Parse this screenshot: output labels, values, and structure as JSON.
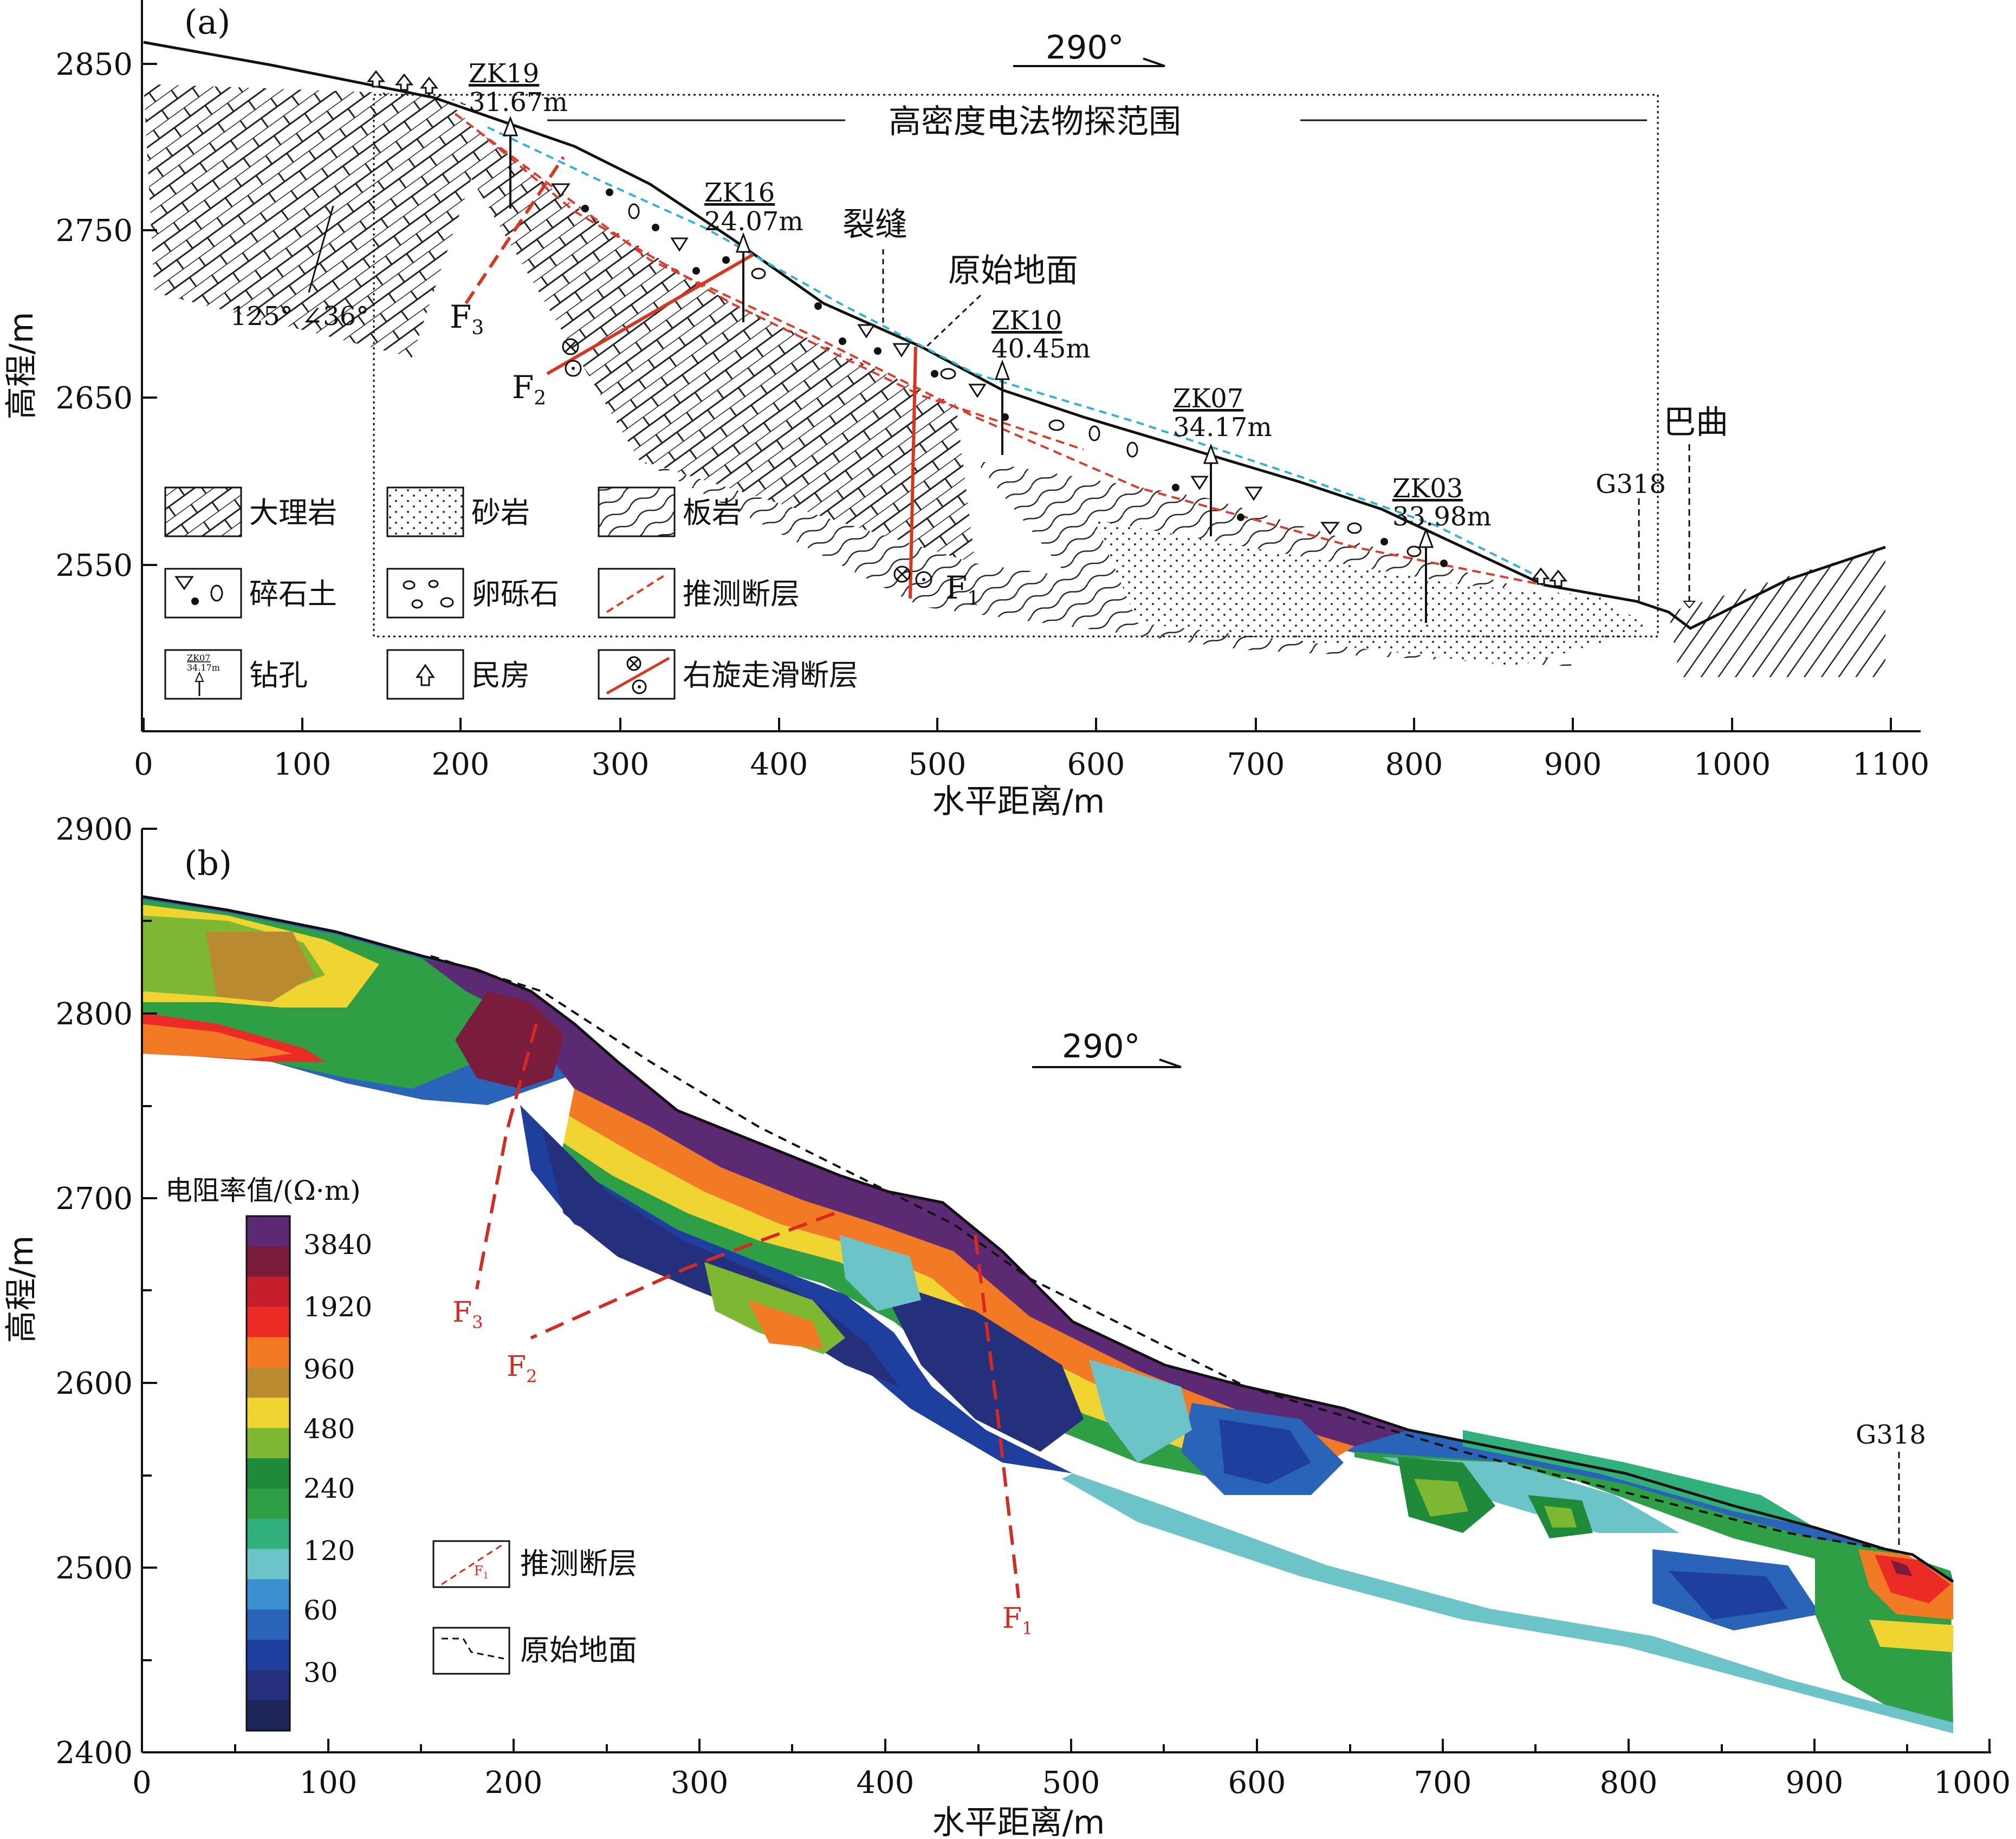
{
  "panel_a": {
    "label": "(a)",
    "direction": "290°",
    "survey_range": "高密度电法物探范围",
    "y_axis_title": "高程/m",
    "x_axis_title": "水平距离/m",
    "y_ticks": [
      "2850",
      "2750",
      "2650",
      "2550"
    ],
    "x_ticks": [
      "0",
      "100",
      "200",
      "300",
      "400",
      "500",
      "600",
      "700",
      "800",
      "900",
      "1000",
      "1100"
    ],
    "boreholes": [
      {
        "id": "ZK19",
        "depth": "31.67m"
      },
      {
        "id": "ZK16",
        "depth": "24.07m"
      },
      {
        "id": "ZK10",
        "depth": "40.45m"
      },
      {
        "id": "ZK07",
        "depth": "34.17m"
      },
      {
        "id": "ZK03",
        "depth": "33.98m"
      }
    ],
    "labels": {
      "crack": "裂缝",
      "original_ground": "原始地面",
      "attitude": "125° ∠36°",
      "road": "G318",
      "river": "巴曲",
      "f1": "F",
      "f1_sub": "1",
      "f2": "F",
      "f2_sub": "2",
      "f3": "F",
      "f3_sub": "3"
    },
    "legend": [
      {
        "key": "marble",
        "text": "大理岩"
      },
      {
        "key": "sandstone",
        "text": "砂岩"
      },
      {
        "key": "slate",
        "text": "板岩"
      },
      {
        "key": "gravel_soil",
        "text": "碎石土"
      },
      {
        "key": "pebble",
        "text": "卵砾石"
      },
      {
        "key": "inferred_fault",
        "text": "推测断层"
      },
      {
        "key": "borehole",
        "text": "钻孔",
        "sample_id": "ZK07",
        "sample_depth": "34.17m"
      },
      {
        "key": "house",
        "text": "民房"
      },
      {
        "key": "strike_slip",
        "text": "右旋走滑断层"
      }
    ],
    "colors": {
      "fault": "#d9361f",
      "water_line": "#2fb4d8",
      "inferred_fault": "#e03a2a"
    }
  },
  "panel_b": {
    "label": "(b)",
    "direction": "290°",
    "y_axis_title": "高程/m",
    "x_axis_title": "水平距离/m",
    "y_ticks": [
      "2900",
      "2800",
      "2700",
      "2600",
      "2500",
      "2400"
    ],
    "x_ticks": [
      "0",
      "100",
      "200",
      "300",
      "400",
      "500",
      "600",
      "700",
      "800",
      "900",
      "1000"
    ],
    "colorbar_title": "电阻率值/(Ω·m)",
    "colorbar_labels": [
      "3840",
      "1920",
      "960",
      "480",
      "240",
      "120",
      "60",
      "30"
    ],
    "colorbar_colors": [
      "#5b2a73",
      "#7a1c3c",
      "#c41f2b",
      "#ec2a26",
      "#f27a24",
      "#b98a30",
      "#f0d431",
      "#7eb833",
      "#1e8a3a",
      "#2e9f45",
      "#30b07a",
      "#6cc4c8",
      "#3a8fd0",
      "#2a64b8",
      "#1f3f9e",
      "#24307c",
      "#1e2558"
    ],
    "legend": [
      {
        "key": "inferred_fault",
        "text": "推测断层",
        "sample": "F",
        "sample_sub": "1"
      },
      {
        "key": "original_ground",
        "text": "原始地面"
      }
    ],
    "labels": {
      "road": "G318",
      "f1": "F",
      "f1_sub": "1",
      "f2": "F",
      "f2_sub": "2",
      "f3": "F",
      "f3_sub": "3"
    }
  }
}
